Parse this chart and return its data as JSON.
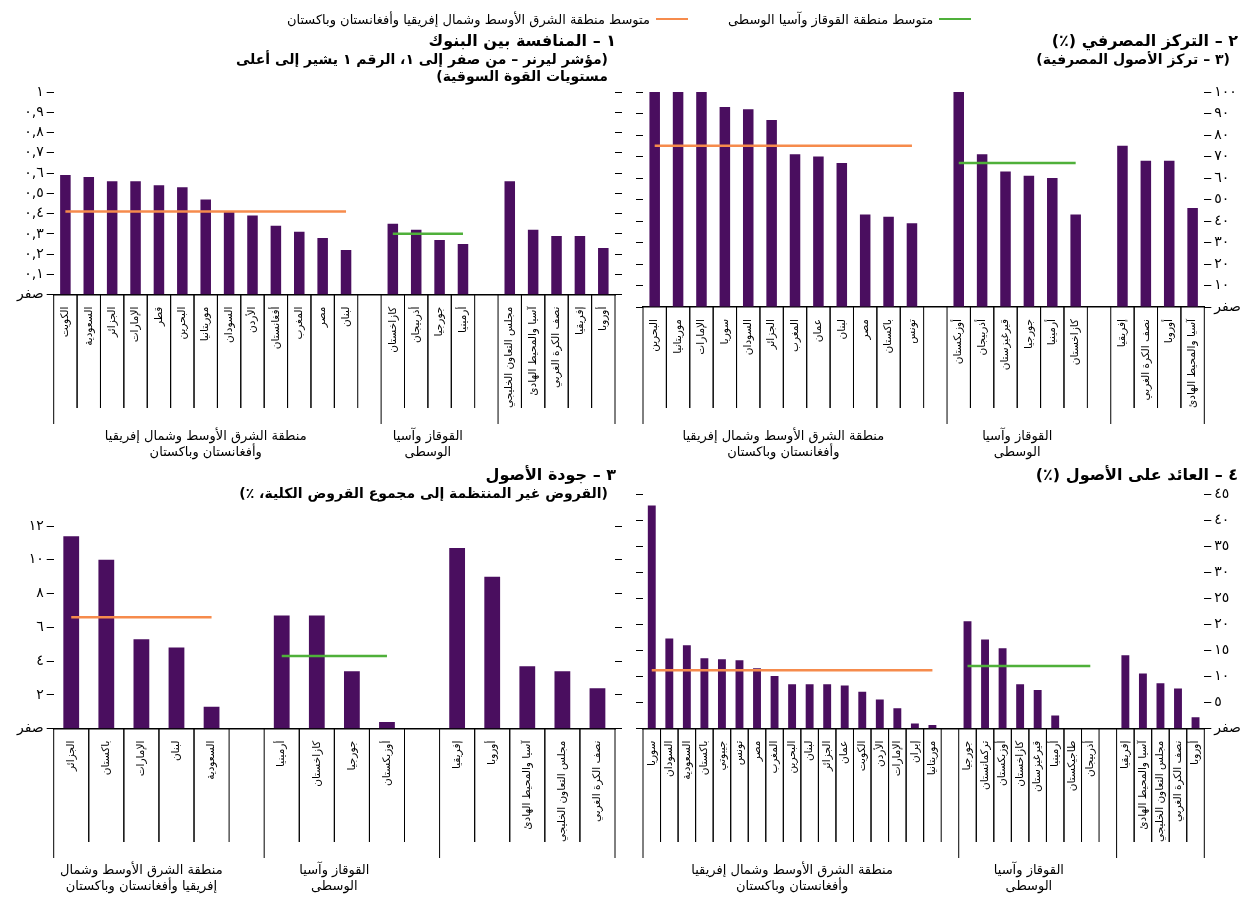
{
  "chart_data": [
    {
      "type": "bar",
      "title": "١ – المنافسة بين البنوك",
      "subtitle": "(مؤشر ليرنر – من صفر إلى ١، الرقم ١ يشير إلى أعلى مستويات القوة السوقية)",
      "legend": "top",
      "marker": "none",
      "categories": [
        "الكويت",
        "السعودية",
        "الجزائر",
        "الإمارات",
        "قطر",
        "البحرين",
        "موريتانيا",
        "السودان",
        "الأردن",
        "أفغانستان",
        "المغرب",
        "مصر",
        "لبنان",
        null,
        "كازاخستان",
        "أذربيجان",
        "جورجيا",
        "أرمينيا",
        null,
        "مجلس التعاون الخليجي",
        "آسيا والمحيط الهادئ",
        "نصف الكرة الغربي",
        "إفريقيا",
        "أوروبا"
      ],
      "series": [
        {
          "color": "#4a0e5f",
          "values": [
            0.59,
            0.58,
            0.56,
            0.56,
            0.54,
            0.53,
            0.47,
            0.41,
            0.39,
            0.34,
            0.31,
            0.28,
            0.22,
            null,
            0.35,
            0.32,
            0.27,
            0.25,
            null,
            0.56,
            0.32,
            0.29,
            0.29,
            0.23
          ]
        },
        {
          "type": "line",
          "name": "متوسط منطقة القوقاز وآسيا الوسطى",
          "color": "#4fb03a",
          "values": [
            null,
            null,
            null,
            null,
            null,
            null,
            null,
            null,
            null,
            null,
            null,
            null,
            null,
            null,
            0.3,
            0.3,
            0.3,
            0.3,
            null,
            null,
            null,
            null,
            null,
            null
          ]
        },
        {
          "type": "line",
          "name": "متوسط منطقة الشرق الأوسط وشمال إفريقيا وأفغانستان وباكستان",
          "color": "#f68b4c",
          "values": [
            0.41,
            0.41,
            0.41,
            0.41,
            0.41,
            0.41,
            0.41,
            0.41,
            0.41,
            0.41,
            0.41,
            0.41,
            0.41,
            null,
            null,
            null,
            null,
            null,
            null,
            null,
            null,
            null,
            null,
            null
          ]
        }
      ],
      "ylim": [
        0,
        1
      ],
      "yticks": [
        {
          "value": 0,
          "label": "صفر"
        },
        {
          "value": 0.1,
          "label": "٠,١"
        },
        {
          "value": 0.2,
          "label": "٠,٢"
        },
        {
          "value": 0.3,
          "label": "٠,٣"
        },
        {
          "value": 0.4,
          "label": "٠,٤"
        },
        {
          "value": 0.5,
          "label": "٠,٥"
        },
        {
          "value": 0.6,
          "label": "٠,٦"
        },
        {
          "value": 0.7,
          "label": "٠,٧"
        },
        {
          "value": 0.8,
          "label": "٠,٨"
        },
        {
          "value": 0.9,
          "label": "٠,٩"
        },
        {
          "value": 1,
          "label": "١"
        }
      ],
      "annotations": [
        "منطقة الشرق الأوسط وشمال إفريقيا وأفغانستان وباكستان",
        "القوقاز وآسيا الوسطى"
      ]
    },
    {
      "type": "bar",
      "title": "٢ – التركز المصرفي (٪)",
      "subtitle": "(٣ – تركز الأصول المصرفية)",
      "marker": "none",
      "categories": [
        "البحرين",
        "موريتانيا",
        "الإمارات",
        "سوريا",
        "السودان",
        "الجزائر",
        "المغرب",
        "عمان",
        "لبنان",
        "مصر",
        "باكستان",
        "تونس",
        null,
        "أوزبكستان",
        "أذربيجان",
        "قيرغيزستان",
        "جورجيا",
        "أرمينيا",
        "كازاخستان",
        null,
        "إفريقيا",
        "نصف الكرة الغربي",
        "أوروبا",
        "آسيا والمحيط الهادئ"
      ],
      "series": [
        {
          "color": "#4a0e5f",
          "axis": "y2",
          "values": [
            100,
            100,
            100,
            93,
            92,
            87,
            71,
            70,
            67,
            43,
            42,
            39,
            null,
            100,
            71,
            63,
            61,
            60,
            43,
            null,
            75,
            68,
            68,
            46
          ]
        },
        {
          "type": "line",
          "color": "#4fb03a",
          "axis": "y2",
          "values": [
            null,
            null,
            null,
            null,
            null,
            null,
            null,
            null,
            null,
            null,
            null,
            null,
            null,
            67,
            67,
            67,
            67,
            67,
            67,
            null,
            null,
            null,
            null,
            null
          ]
        },
        {
          "type": "line",
          "color": "#f68b4c",
          "axis": "y2",
          "values": [
            75,
            75,
            75,
            75,
            75,
            75,
            75,
            75,
            75,
            75,
            75,
            75,
            null,
            null,
            null,
            null,
            null,
            null,
            null,
            null,
            null,
            null,
            null,
            null
          ]
        }
      ],
      "y2lim": [
        0,
        100
      ],
      "y2ticks": [
        {
          "value": 0,
          "label": "صفر"
        },
        {
          "value": 10,
          "label": "١٠"
        },
        {
          "value": 20,
          "label": "٢٠"
        },
        {
          "value": 30,
          "label": "٣٠"
        },
        {
          "value": 40,
          "label": "٤٠"
        },
        {
          "value": 50,
          "label": "٥٠"
        },
        {
          "value": 60,
          "label": "٦٠"
        },
        {
          "value": 70,
          "label": "٧٠"
        },
        {
          "value": 80,
          "label": "٨٠"
        },
        {
          "value": 90,
          "label": "٩٠"
        },
        {
          "value": 100,
          "label": "١٠٠"
        }
      ],
      "annotations": [
        "منطقة الشرق الأوسط وشمال إفريقيا وأفغانستان وباكستان",
        "القوقاز وآسيا الوسطى"
      ]
    },
    {
      "type": "bar",
      "title": "٣ – جودة الأصول",
      "subtitle": "(القروض غير المنتظمة إلى مجموع القروض الكلية، ٪)",
      "marker": "none",
      "categories": [
        "الجزائر",
        "باكستان",
        "الإمارات",
        "لبنان",
        "السعودية",
        null,
        "أرمينيا",
        "كازاخستان",
        "جورجيا",
        "أوزبكستان",
        null,
        "إفريقيا",
        "أوروبا",
        "آسيا والمحيط الهادئ",
        "مجلس التعاون الخليجي",
        "نصف الكرة الغربي"
      ],
      "series": [
        {
          "color": "#4a0e5f",
          "values": [
            11.4,
            10.0,
            5.3,
            4.8,
            1.3,
            null,
            6.7,
            6.7,
            3.4,
            0.4,
            null,
            10.7,
            9.0,
            3.7,
            3.4,
            2.4
          ]
        },
        {
          "type": "line",
          "color": "#4fb03a",
          "values": [
            null,
            null,
            null,
            null,
            null,
            null,
            4.3,
            4.3,
            4.3,
            4.3,
            null,
            null,
            null,
            null,
            null,
            null
          ]
        },
        {
          "type": "line",
          "color": "#f68b4c",
          "values": [
            6.6,
            6.6,
            6.6,
            6.6,
            6.6,
            null,
            null,
            null,
            null,
            null,
            null,
            null,
            null,
            null,
            null,
            null
          ]
        }
      ],
      "ylim": [
        0,
        12
      ],
      "yticks": [
        {
          "value": 0,
          "label": "صفر"
        },
        {
          "value": 2,
          "label": "٢"
        },
        {
          "value": 4,
          "label": "٤"
        },
        {
          "value": 6,
          "label": "٦"
        },
        {
          "value": 8,
          "label": "٨"
        },
        {
          "value": 10,
          "label": "١٠"
        },
        {
          "value": 12,
          "label": "١٢"
        }
      ],
      "annotations": [
        "منطقة الشرق الأوسط وشمال إفريقيا وأفغانستان وباكستان",
        "القوقاز وآسيا الوسطى"
      ]
    },
    {
      "type": "bar",
      "title": "٤ – العائد على الأصول (٪)",
      "marker": "none",
      "categories": [
        "سوريا",
        "السودان",
        "السعودية",
        "باكستان",
        "جيبوتي",
        "تونس",
        "مصر",
        "المغرب",
        "البحرين",
        "لبنان",
        "الجزائر",
        "عمان",
        "الكويت",
        "الأردن",
        "الإمارات",
        "إيران",
        "موريتانيا",
        null,
        "جورجيا",
        "تركمانستان",
        "أوزبكستان",
        "كازاخستان",
        "قيرغيزستان",
        "أرمينيا",
        "طاجيكستان",
        "أذربيجان",
        null,
        "إفريقيا",
        "آسيا والمحيط الهادئ",
        "مجلس التعاون الخليجي",
        "نصف الكرة الغربي",
        "أوروبا"
      ],
      "series": [
        {
          "color": "#4a0e5f",
          "axis": "y2",
          "values": [
            42.8,
            17.3,
            16.0,
            13.5,
            13.3,
            13.1,
            11.6,
            10.1,
            8.5,
            8.5,
            8.5,
            8.3,
            7.1,
            5.6,
            3.9,
            1.0,
            0.7,
            null,
            20.6,
            17.1,
            15.4,
            8.5,
            7.4,
            2.5,
            null,
            null,
            null,
            14.1,
            10.6,
            8.7,
            7.7,
            2.2
          ]
        },
        {
          "type": "line",
          "color": "#4fb03a",
          "axis": "y2",
          "values": [
            null,
            null,
            null,
            null,
            null,
            null,
            null,
            null,
            null,
            null,
            null,
            null,
            null,
            null,
            null,
            null,
            null,
            null,
            12.0,
            12.0,
            12.0,
            12.0,
            12.0,
            12.0,
            12.0,
            12.0,
            null,
            null,
            null,
            null,
            null,
            null
          ]
        },
        {
          "type": "line",
          "color": "#f68b4c",
          "axis": "y2",
          "values": [
            11.2,
            11.2,
            11.2,
            11.2,
            11.2,
            11.2,
            11.2,
            11.2,
            11.2,
            11.2,
            11.2,
            11.2,
            11.2,
            11.2,
            11.2,
            11.2,
            11.2,
            null,
            null,
            null,
            null,
            null,
            null,
            null,
            null,
            null,
            null,
            null,
            null,
            null,
            null,
            null
          ]
        }
      ],
      "y2lim": [
        0,
        45
      ],
      "y2ticks": [
        {
          "value": 0,
          "label": "صفر"
        },
        {
          "value": 5,
          "label": "٥"
        },
        {
          "value": 10,
          "label": "١٠"
        },
        {
          "value": 15,
          "label": "١٥"
        },
        {
          "value": 20,
          "label": "٢٠"
        },
        {
          "value": 25,
          "label": "٢٥"
        },
        {
          "value": 30,
          "label": "٣٠"
        },
        {
          "value": 35,
          "label": "٣٥"
        },
        {
          "value": 40,
          "label": "٤٠"
        },
        {
          "value": 45,
          "label": "٤٥"
        }
      ],
      "annotations": [
        "منطقة الشرق الأوسط وشمال إفريقيا وأفغانستان وباكستان",
        "القوقاز وآسيا الوسطى"
      ]
    }
  ]
}
